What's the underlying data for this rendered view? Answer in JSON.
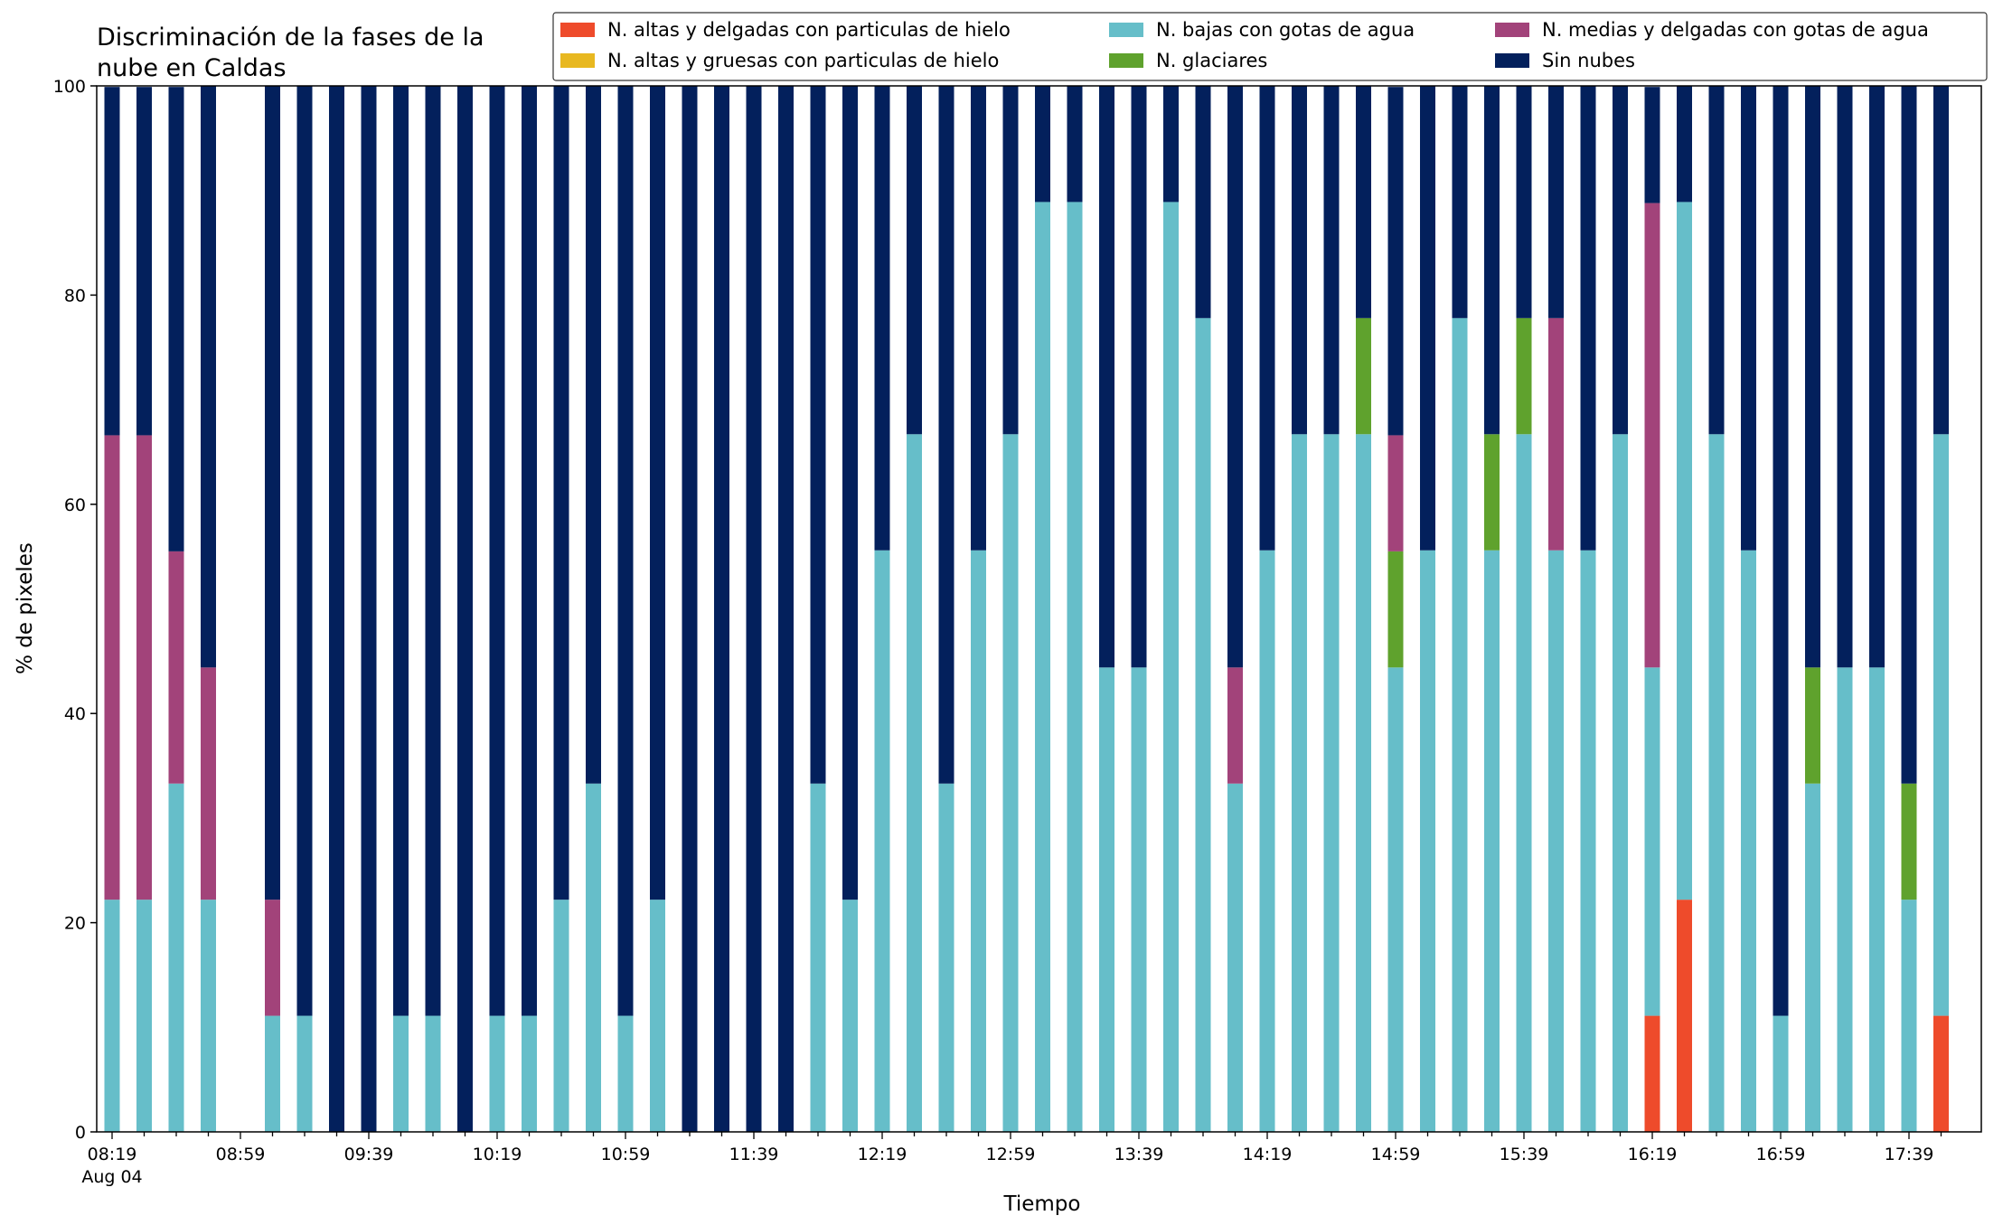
{
  "chart_data": {
    "type": "bar",
    "stacked": true,
    "title": [
      "Discriminación de la fases de la",
      "nube en Caldas"
    ],
    "xlabel": "Tiempo",
    "ylabel": "% de pixeles",
    "ylim": [
      0,
      100
    ],
    "yticks": [
      0,
      20,
      40,
      60,
      80,
      100
    ],
    "xtick_labels": [
      "08:19",
      "08:59",
      "09:39",
      "10:19",
      "10:59",
      "11:39",
      "12:19",
      "12:59",
      "13:39",
      "14:19",
      "14:59",
      "15:39",
      "16:19",
      "16:59",
      "17:39"
    ],
    "xtick_sublabel": "Aug 04",
    "legend_position": "top-right",
    "grid": false,
    "categories": [
      "08:19",
      "08:29",
      "08:39",
      "08:49",
      "08:59",
      "09:09",
      "09:19",
      "09:29",
      "09:39",
      "09:49",
      "09:59",
      "10:09",
      "10:19",
      "10:29",
      "10:39",
      "10:49",
      "10:59",
      "11:09",
      "11:19",
      "11:29",
      "11:39",
      "11:49",
      "11:59",
      "12:09",
      "12:19",
      "12:29",
      "12:39",
      "12:49",
      "12:59",
      "13:09",
      "13:19",
      "13:29",
      "13:39",
      "13:49",
      "13:59",
      "14:09",
      "14:19",
      "14:29",
      "14:39",
      "14:49",
      "14:59",
      "15:09",
      "15:19",
      "15:29",
      "15:39",
      "15:49",
      "15:59",
      "16:09",
      "16:19",
      "16:29",
      "16:39",
      "16:49",
      "16:59",
      "17:09",
      "17:19",
      "17:29",
      "17:39",
      "17:49"
    ],
    "series": [
      {
        "name": "N. altas y delgadas con particulas de hielo",
        "color": "#ee4b2b",
        "values": [
          0,
          0,
          0,
          0,
          0,
          0,
          0,
          0,
          0,
          0,
          0,
          0,
          0,
          0,
          0,
          0,
          0,
          0,
          0,
          0,
          0,
          0,
          0,
          0,
          0,
          0,
          0,
          0,
          0,
          0,
          0,
          0,
          0,
          0,
          0,
          0,
          0,
          0,
          0,
          0,
          0,
          0,
          0,
          0,
          0,
          0,
          0,
          0,
          11.1,
          22.2,
          0,
          0,
          0,
          0,
          0,
          0,
          0,
          11.1
        ]
      },
      {
        "name": "N. altas y gruesas con particulas de hielo",
        "color": "#e8b820",
        "values": [
          0,
          0,
          0,
          0,
          0,
          0,
          0,
          0,
          0,
          0,
          0,
          0,
          0,
          0,
          0,
          0,
          0,
          0,
          0,
          0,
          0,
          0,
          0,
          0,
          0,
          0,
          0,
          0,
          0,
          0,
          0,
          0,
          0,
          0,
          0,
          0,
          0,
          0,
          0,
          0,
          0,
          0,
          0,
          0,
          0,
          0,
          0,
          0,
          0,
          0,
          0,
          0,
          0,
          0,
          0,
          0,
          0,
          0
        ]
      },
      {
        "name": "N. bajas con gotas de agua",
        "color": "#66bec9",
        "values": [
          22.2,
          22.2,
          33.3,
          22.2,
          0,
          11.1,
          11.1,
          0,
          0,
          11.1,
          11.1,
          0,
          11.1,
          11.1,
          22.2,
          33.3,
          11.1,
          22.2,
          0,
          0,
          0,
          0,
          33.3,
          22.2,
          55.6,
          66.7,
          33.3,
          55.6,
          66.7,
          88.9,
          88.9,
          44.4,
          44.4,
          88.9,
          77.8,
          33.3,
          55.6,
          66.7,
          66.7,
          66.7,
          44.4,
          55.6,
          77.8,
          55.6,
          66.7,
          55.6,
          55.6,
          66.7,
          33.3,
          66.7,
          66.7,
          55.6,
          11.1,
          33.3,
          44.4,
          44.4,
          22.2,
          55.6
        ]
      },
      {
        "name": "N. glaciares",
        "color": "#5fa22d",
        "values": [
          0,
          0,
          0,
          0,
          0,
          0,
          0,
          0,
          0,
          0,
          0,
          0,
          0,
          0,
          0,
          0,
          0,
          0,
          0,
          0,
          0,
          0,
          0,
          0,
          0,
          0,
          0,
          0,
          0,
          0,
          0,
          0,
          0,
          0,
          0,
          0,
          0,
          0,
          0,
          11.1,
          11.1,
          0,
          0,
          11.1,
          11.1,
          0,
          0,
          0,
          0,
          0,
          0,
          0,
          0,
          11.1,
          0,
          0,
          11.1,
          0
        ]
      },
      {
        "name": "N. medias y delgadas con gotas de agua",
        "color": "#a2437a",
        "values": [
          44.4,
          44.4,
          22.2,
          22.2,
          0,
          11.1,
          0,
          0,
          0,
          0,
          0,
          0,
          0,
          0,
          0,
          0,
          0,
          0,
          0,
          0,
          0,
          0,
          0,
          0,
          0,
          0,
          0,
          0,
          0,
          0,
          0,
          0,
          0,
          0,
          0,
          11.1,
          0,
          0,
          0,
          0,
          11.1,
          0,
          0,
          0,
          0,
          22.2,
          0,
          0,
          44.4,
          0,
          0,
          0,
          0,
          0,
          0,
          0,
          0,
          0
        ]
      },
      {
        "name": "Sin nubes",
        "color": "#03205c",
        "values": [
          33.3,
          33.3,
          44.4,
          55.6,
          0,
          77.8,
          88.9,
          100,
          100,
          88.9,
          88.9,
          100,
          88.9,
          88.9,
          77.8,
          66.7,
          88.9,
          77.8,
          100,
          100,
          100,
          100,
          66.7,
          77.8,
          44.4,
          33.3,
          66.7,
          44.4,
          33.3,
          11.1,
          11.1,
          55.6,
          55.6,
          11.1,
          22.2,
          55.6,
          44.4,
          33.3,
          33.3,
          22.2,
          33.3,
          44.4,
          22.2,
          33.3,
          22.2,
          22.2,
          44.4,
          33.3,
          11.1,
          11.1,
          33.3,
          44.4,
          88.9,
          55.6,
          55.6,
          55.6,
          66.7,
          33.3
        ]
      }
    ]
  }
}
